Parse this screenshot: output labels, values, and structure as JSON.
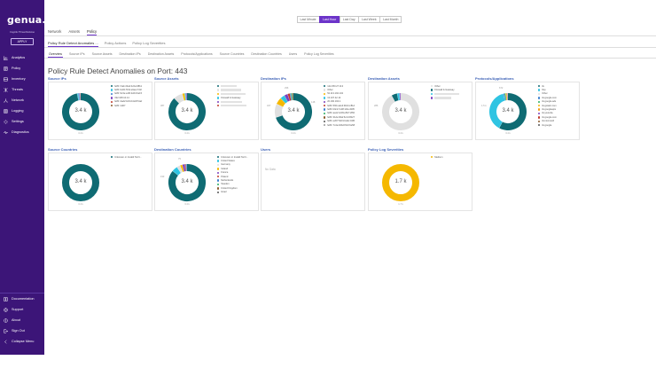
{
  "app": {
    "logo": "genua.",
    "logo_sub": "Cognitix Threat Defense",
    "apply_label": "APPLY"
  },
  "sidebar": {
    "items": [
      {
        "label": "Analytics",
        "icon": "chart-icon"
      },
      {
        "label": "Policy",
        "icon": "policy-icon"
      },
      {
        "label": "Inventory",
        "icon": "inventory-icon"
      },
      {
        "label": "Threats",
        "icon": "threats-icon"
      },
      {
        "label": "Network",
        "icon": "network-icon"
      },
      {
        "label": "Logging",
        "icon": "logging-icon"
      },
      {
        "label": "Settings",
        "icon": "gear-icon"
      },
      {
        "label": "Diagnostics",
        "icon": "diagnostics-icon"
      }
    ],
    "bottom": [
      {
        "label": "Documentation",
        "icon": "book-icon"
      },
      {
        "label": "Support",
        "icon": "support-icon"
      },
      {
        "label": "About",
        "icon": "info-icon"
      },
      {
        "label": "Sign Out",
        "icon": "sign-out-icon"
      },
      {
        "label": "Collapse Menu",
        "icon": "collapse-icon"
      }
    ]
  },
  "timebar": [
    "Last Minute",
    "Last Hour",
    "Last Day",
    "Last Week",
    "Last Month"
  ],
  "timebar_active": 1,
  "maintabs": [
    "Network",
    "Assets",
    "Policy"
  ],
  "maintabs_active": 2,
  "subtabs": [
    "Policy Rule Detect Anomalies ... ",
    "Policy Actions",
    "Policy Log Severities"
  ],
  "subtabs_active": 0,
  "viewtabs": [
    "Overview",
    "Source IPs",
    "Source Assets",
    "Destination IPs",
    "Destination Assets",
    "Protocols/Applications",
    "Source Countries",
    "Destination Countries",
    "Users",
    "Policy Log Severities"
  ],
  "viewtabs_active": 0,
  "page_title": "Policy Rule Detect Anomalies on Port: 443",
  "colors": {
    "sidebar": "#3c1578",
    "accent": "#6c34c9",
    "teal": "#0f6b73",
    "cyan": "#2fc4e2",
    "gold": "#f5b800"
  },
  "panels": [
    {
      "title": "Source IPs",
      "center": "3.4 k",
      "sub": "3.4 k",
      "slices": [
        0.97,
        0.01,
        0.01,
        0.005,
        0.005
      ],
      "slice_colors": [
        "#0f6b73",
        "#2fc4e2",
        "#3a7fd0",
        "#7b3fbf",
        "#c0392b"
      ],
      "slice_labels": [],
      "legend": [
        {
          "label": "fe80::f1ab:23ed:4c0a:98b1",
          "color": "#0f6b73"
        },
        {
          "label": "fe80::b2d1:5f11:e0aa:7c02",
          "color": "#2fc4e2"
        },
        {
          "label": "fe80::9c3e:a1f0:22d4:6e15",
          "color": "#3a7fd0"
        },
        {
          "label": "192.168.10.14",
          "color": "#7b3fbf"
        },
        {
          "label": "fe80::4ad2:0c91:b3e8:51af",
          "color": "#c0392b"
        },
        {
          "label": "fe80::1d07",
          "color": "#8b5a2b"
        }
      ]
    },
    {
      "title": "Source Assets",
      "center": "3.4 k",
      "sub": "3.4 k",
      "slices": [
        0.88,
        0.08,
        0.02,
        0.01,
        0.01
      ],
      "slice_colors": [
        "#0f6b73",
        "#e0e0e0",
        "#f5b800",
        "#2fc4e2",
        "#7b3fbf"
      ],
      "slice_labels": [
        "387"
      ],
      "legend": [
        {
          "label": "",
          "color": "#0f6b73"
        },
        {
          "label": "",
          "color": "#e0e0e0"
        },
        {
          "label": "",
          "color": "#f5b800"
        },
        {
          "label": "Firewall & Gateway",
          "color": "#2fc4e2"
        },
        {
          "label": "",
          "color": "#7b3fbf"
        },
        {
          "label": "",
          "color": "#c0392b"
        }
      ]
    },
    {
      "title": "Destination IPs",
      "center": "3.4 k",
      "sub": "3.4 k",
      "slices": [
        0.7,
        0.12,
        0.06,
        0.04,
        0.03,
        0.02,
        0.01,
        0.01,
        0.01
      ],
      "slice_colors": [
        "#0f6b73",
        "#e0e0e0",
        "#f5b800",
        "#2fc4e2",
        "#7b3fbf",
        "#c0392b",
        "#3a7fd0",
        "#27ae60",
        "#8b5a2b"
      ],
      "slice_labels": [
        "327",
        "296",
        "148"
      ],
      "legend": [
        {
          "label": "142.250.27.113",
          "color": "#0f6b73"
        },
        {
          "label": "Other",
          "color": "#e0e0e0"
        },
        {
          "label": "52.113.194.132",
          "color": "#f5b800"
        },
        {
          "label": "13.107.42.14",
          "color": "#2fc4e2"
        },
        {
          "label": "20.190.160.1",
          "color": "#7b3fbf"
        },
        {
          "label": "fe80::5f01:a2e3:9b44:c81d",
          "color": "#c0392b"
        },
        {
          "label": "fe80::b9c2:7e08:11fa:d305",
          "color": "#3a7fd0"
        },
        {
          "label": "fe80::aa12:4c09:e5b7:2f60",
          "color": "#27ae60"
        },
        {
          "label": "fe80::31de:90af:6c14:8b27",
          "color": "#8b5a2b"
        },
        {
          "label": "fe80::e207:5d31:ba9c:04f6",
          "color": "#555555"
        },
        {
          "label": "fe80::7c4a:02bd:f913:6e58",
          "color": "#999999"
        }
      ]
    },
    {
      "title": "Destination Assets",
      "center": "3.4 k",
      "sub": "3.4 k",
      "slices": [
        0.92,
        0.05,
        0.02,
        0.01
      ],
      "slice_colors": [
        "#e0e0e0",
        "#0f6b73",
        "#2fc4e2",
        "#7b3fbf"
      ],
      "slice_labels": [
        "286"
      ],
      "legend": [
        {
          "label": "Other",
          "color": "#e0e0e0"
        },
        {
          "label": "Firewall & Gateway",
          "color": "#0f6b73"
        },
        {
          "label": "",
          "color": "#2fc4e2"
        },
        {
          "label": "",
          "color": "#7b3fbf"
        }
      ]
    },
    {
      "title": "Protocols/Applications",
      "center": "3.4 k",
      "sub": "3.4 k",
      "slices": [
        0.58,
        0.38,
        0.01,
        0.01,
        0.01,
        0.005,
        0.005
      ],
      "slice_colors": [
        "#0f6b73",
        "#2fc4e2",
        "#3a7fd0",
        "#27ae60",
        "#f5b800",
        "#7b3fbf",
        "#c0392b"
      ],
      "slice_labels": [
        "1.5 k",
        "672"
      ],
      "legend": [
        {
          "label": "tls",
          "color": "#0f6b73"
        },
        {
          "label": "http",
          "color": "#2fc4e2"
        },
        {
          "label": "Other",
          "color": "#e0e0e0"
        },
        {
          "label": "tls:google.com",
          "color": "#3a7fd0"
        },
        {
          "label": "tls:google.ads",
          "color": "#27ae60"
        },
        {
          "label": "tls:gstatic.com",
          "color": "#f5b800"
        },
        {
          "label": "tls:googleapis",
          "color": "#f39c12"
        },
        {
          "label": "tls:youtube",
          "color": "#7b3fbf"
        },
        {
          "label": "tls:google.com",
          "color": "#c0392b"
        },
        {
          "label": "tls:microsoft",
          "color": "#8b5a2b"
        },
        {
          "label": "tls:google",
          "color": "#555555"
        }
      ]
    },
    {
      "title": "Source Countries",
      "center": "3.4 k",
      "sub": "3.4 k",
      "slices": [
        1
      ],
      "slice_colors": [
        "#0f6b73"
      ],
      "slice_labels": [],
      "legend": [
        {
          "label": "Unknown or Invalid Territ...",
          "color": "#0f6b73"
        }
      ]
    },
    {
      "title": "Destination Countries",
      "center": "3.4 k",
      "sub": "3.4 k",
      "slices": [
        0.86,
        0.05,
        0.03,
        0.02,
        0.02,
        0.01,
        0.01
      ],
      "slice_colors": [
        "#0f6b73",
        "#2fc4e2",
        "#e0e0e0",
        "#f5b800",
        "#7b3fbf",
        "#c0392b",
        "#3a7fd0"
      ],
      "slice_labels": [
        "193",
        "75"
      ],
      "legend": [
        {
          "label": "Unknown or Invalid Territ...",
          "color": "#0f6b73"
        },
        {
          "label": "United States",
          "color": "#2fc4e2"
        },
        {
          "label": "Germany",
          "color": "#e0e0e0"
        },
        {
          "label": "Ireland",
          "color": "#f5b800"
        },
        {
          "label": "France",
          "color": "#7b3fbf"
        },
        {
          "label": "Poland",
          "color": "#c0392b"
        },
        {
          "label": "Netherlands",
          "color": "#3a7fd0"
        },
        {
          "label": "Sweden",
          "color": "#27ae60"
        },
        {
          "label": "United Kingdom",
          "color": "#8b5a2b"
        },
        {
          "label": "Israel",
          "color": "#555555"
        }
      ]
    },
    {
      "title": "Users",
      "nodata": "No Data"
    },
    {
      "title": "Policy Log Severities",
      "center": "1.7 k",
      "sub": "1.7 k",
      "slices": [
        1
      ],
      "slice_colors": [
        "#f5b800"
      ],
      "slice_labels": [],
      "legend": [
        {
          "label": "Medium",
          "color": "#f5b800"
        }
      ]
    }
  ]
}
